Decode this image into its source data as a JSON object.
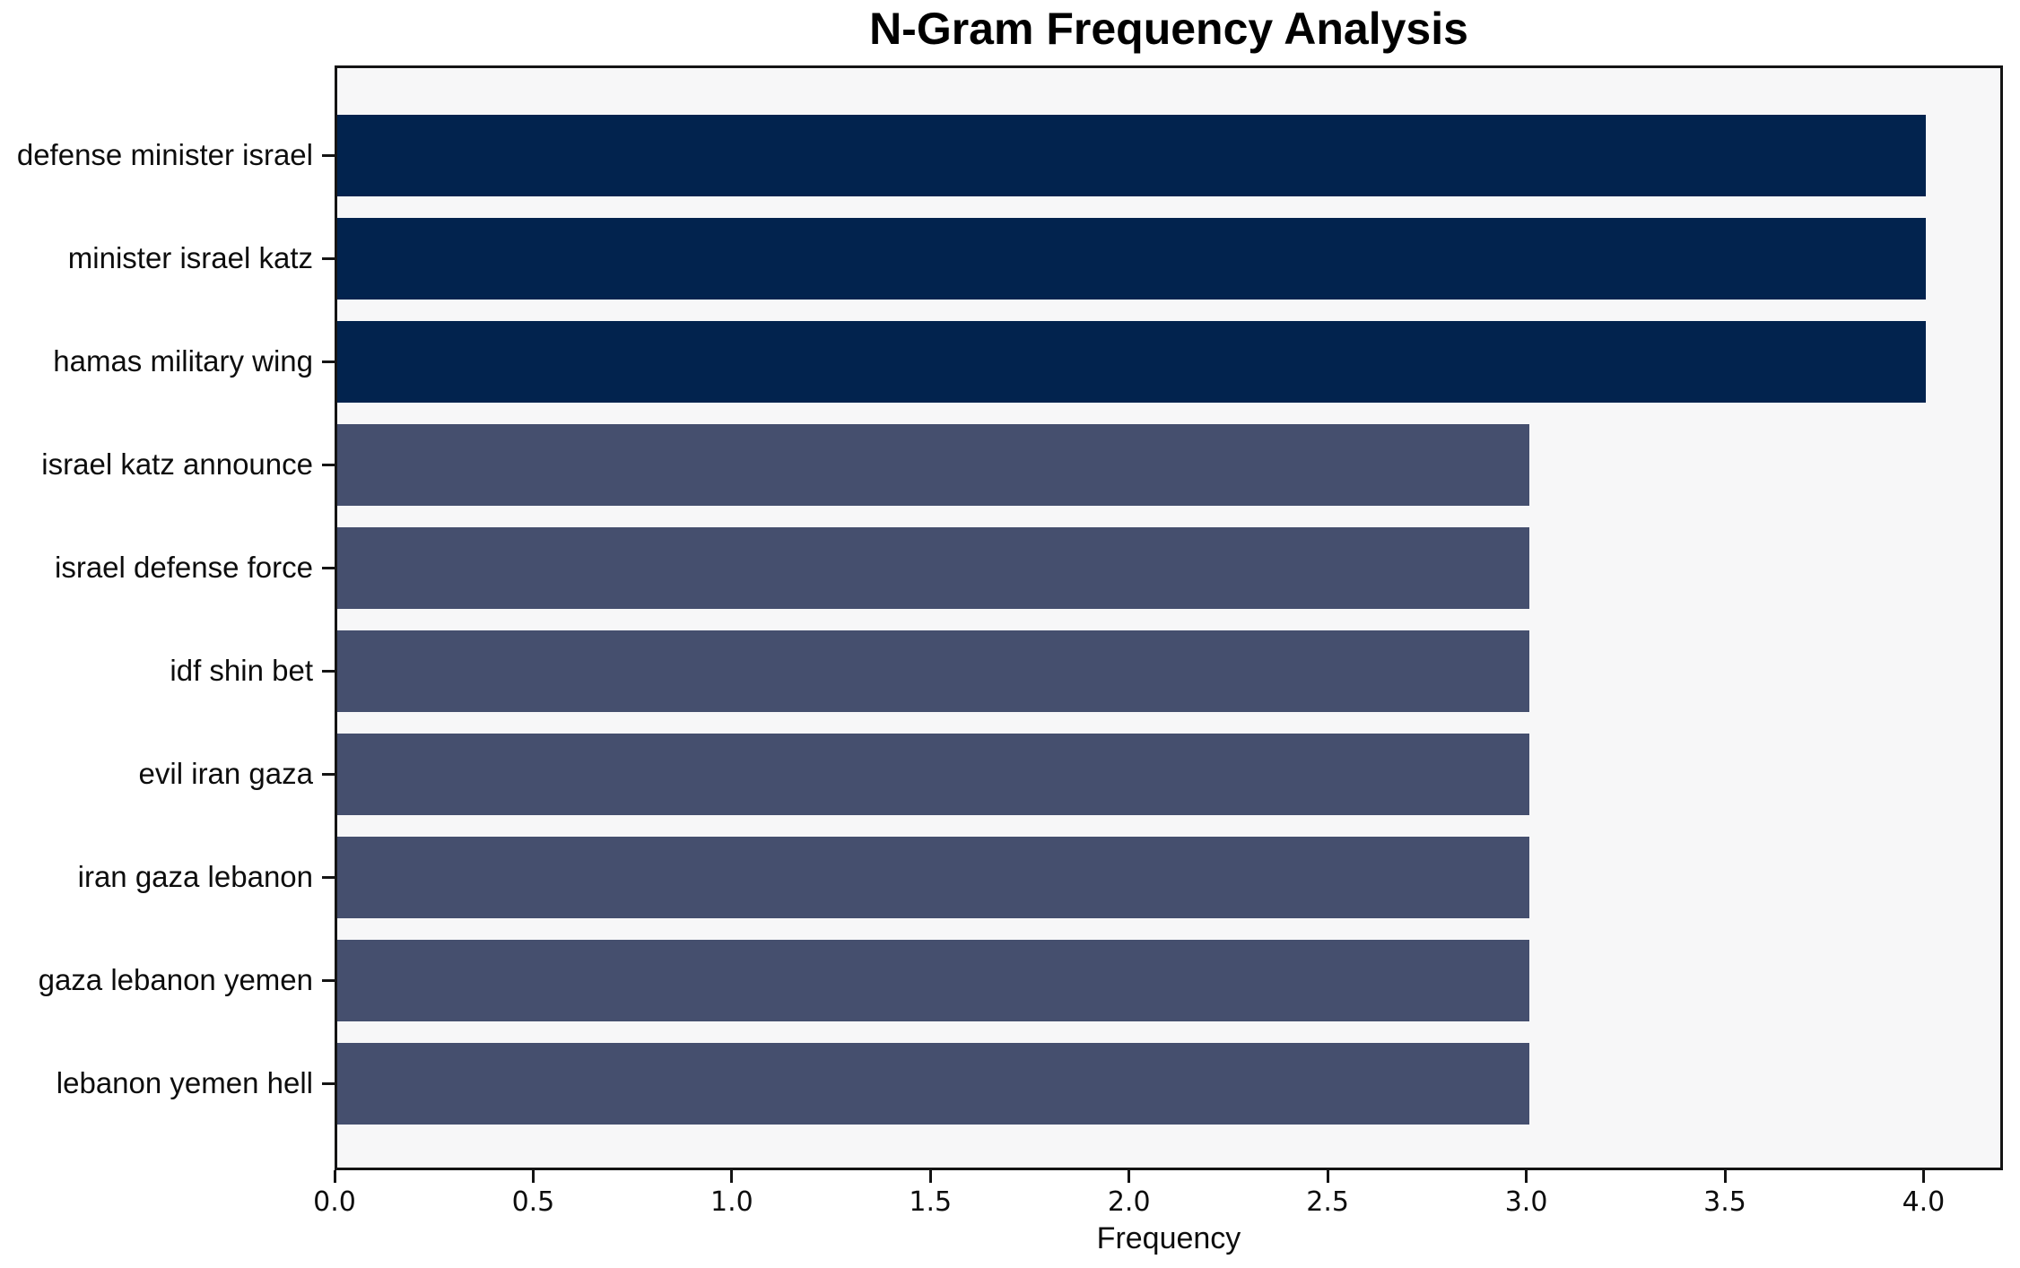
{
  "chart_data": {
    "type": "bar",
    "orientation": "horizontal",
    "title": "N-Gram Frequency Analysis",
    "xlabel": "Frequency",
    "ylabel": "",
    "categories": [
      "defense minister israel",
      "minister israel katz",
      "hamas military wing",
      "israel katz announce",
      "israel defense force",
      "idf shin bet",
      "evil iran gaza",
      "iran gaza lebanon",
      "gaza lebanon yemen",
      "lebanon yemen hell"
    ],
    "values": [
      4,
      4,
      4,
      3,
      3,
      3,
      3,
      3,
      3,
      3
    ],
    "bar_colors": [
      "#02234e",
      "#02234e",
      "#02234e",
      "#454f6e",
      "#454f6e",
      "#454f6e",
      "#454f6e",
      "#454f6e",
      "#454f6e",
      "#454f6e"
    ],
    "xlim": [
      0,
      4.2
    ],
    "xtick_labels": [
      "0.0",
      "0.5",
      "1.0",
      "1.5",
      "2.0",
      "2.5",
      "3.0",
      "3.5",
      "4.0"
    ],
    "xtick_values": [
      0,
      0.5,
      1,
      1.5,
      2,
      2.5,
      3,
      3.5,
      4
    ],
    "grid": false,
    "legend": null
  },
  "colors": {
    "bar_high": "#02234e",
    "bar_normal": "#454f6e",
    "plot_background": "#f7f7f8",
    "page_background": "#ffffff",
    "axis_frame": "#141414",
    "text": "#0d0d0d"
  }
}
